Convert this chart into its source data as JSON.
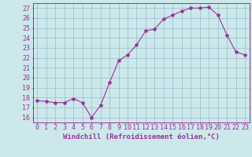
{
  "x": [
    0,
    1,
    2,
    3,
    4,
    5,
    6,
    7,
    8,
    9,
    10,
    11,
    12,
    13,
    14,
    15,
    16,
    17,
    18,
    19,
    20,
    21,
    22,
    23
  ],
  "y": [
    17.7,
    17.6,
    17.5,
    17.5,
    17.9,
    17.5,
    16.0,
    17.2,
    19.5,
    21.7,
    22.3,
    23.3,
    24.7,
    24.9,
    25.9,
    26.3,
    26.7,
    27.0,
    27.0,
    27.1,
    26.3,
    24.3,
    22.6,
    22.3
  ],
  "line_color": "#993399",
  "marker": "*",
  "marker_size": 3,
  "bg_color": "#cce8ea",
  "grid_color": "#99bbcc",
  "axis_color": "#993399",
  "tick_color": "#993399",
  "xlabel": "Windchill (Refroidissement éolien,°C)",
  "xlim": [
    -0.5,
    23.5
  ],
  "ylim": [
    15.5,
    27.5
  ],
  "yticks": [
    16,
    17,
    18,
    19,
    20,
    21,
    22,
    23,
    24,
    25,
    26,
    27
  ],
  "xticks": [
    0,
    1,
    2,
    3,
    4,
    5,
    6,
    7,
    8,
    9,
    10,
    11,
    12,
    13,
    14,
    15,
    16,
    17,
    18,
    19,
    20,
    21,
    22,
    23
  ],
  "label_fontsize": 6.5,
  "tick_fontsize": 6.0
}
